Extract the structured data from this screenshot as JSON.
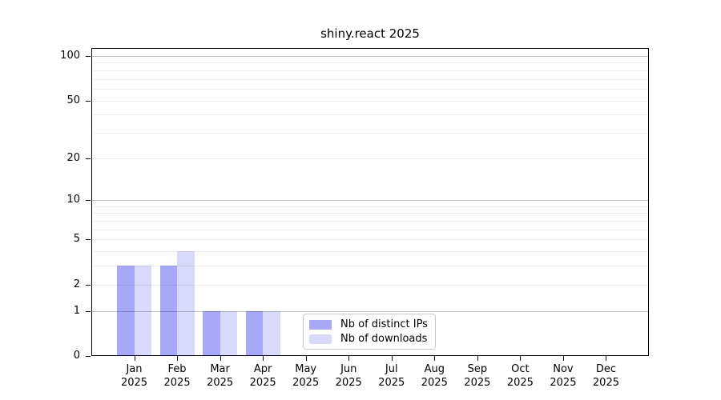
{
  "window": {
    "title": "shiny.react 2025"
  },
  "colors": {
    "bar_distinct_ips": "rgba(0,0,235,0.34)",
    "bar_downloads": "rgba(0,0,235,0.15)",
    "grid_major": "#c2c2c2",
    "grid_minor": "#ebebeb",
    "axis": "#000000",
    "legend_border": "#c9c9c9",
    "background": "#ffffff"
  },
  "chart_data": {
    "type": "bar",
    "title": "shiny.react 2025",
    "categories": [
      "Jan 2025",
      "Feb 2025",
      "Mar 2025",
      "Apr 2025",
      "May 2025",
      "Jun 2025",
      "Jul 2025",
      "Aug 2025",
      "Sep 2025",
      "Oct 2025",
      "Nov 2025",
      "Dec 2025"
    ],
    "series": [
      {
        "name": "Nb of distinct IPs",
        "color": "rgba(0,0,235,0.34)",
        "values": [
          3,
          3,
          1,
          1,
          0,
          0,
          0,
          0,
          0,
          0,
          0,
          0
        ]
      },
      {
        "name": "Nb of downloads",
        "color": "rgba(0,0,235,0.15)",
        "values": [
          3,
          4,
          1,
          1,
          0,
          0,
          0,
          0,
          0,
          0,
          0,
          0
        ]
      }
    ],
    "xlabel": "",
    "ylabel": "",
    "yscale": "log1p",
    "ylim": [
      0,
      113
    ],
    "yticks": [
      0,
      1,
      2,
      5,
      10,
      20,
      50,
      100
    ],
    "minor_gridlines": [
      3,
      4,
      6,
      7,
      8,
      9,
      30,
      40,
      60,
      70,
      80,
      90
    ],
    "emphasized_gridlines": [
      1,
      10,
      100
    ],
    "grid": true,
    "legend_position": "inside-lower-center"
  }
}
